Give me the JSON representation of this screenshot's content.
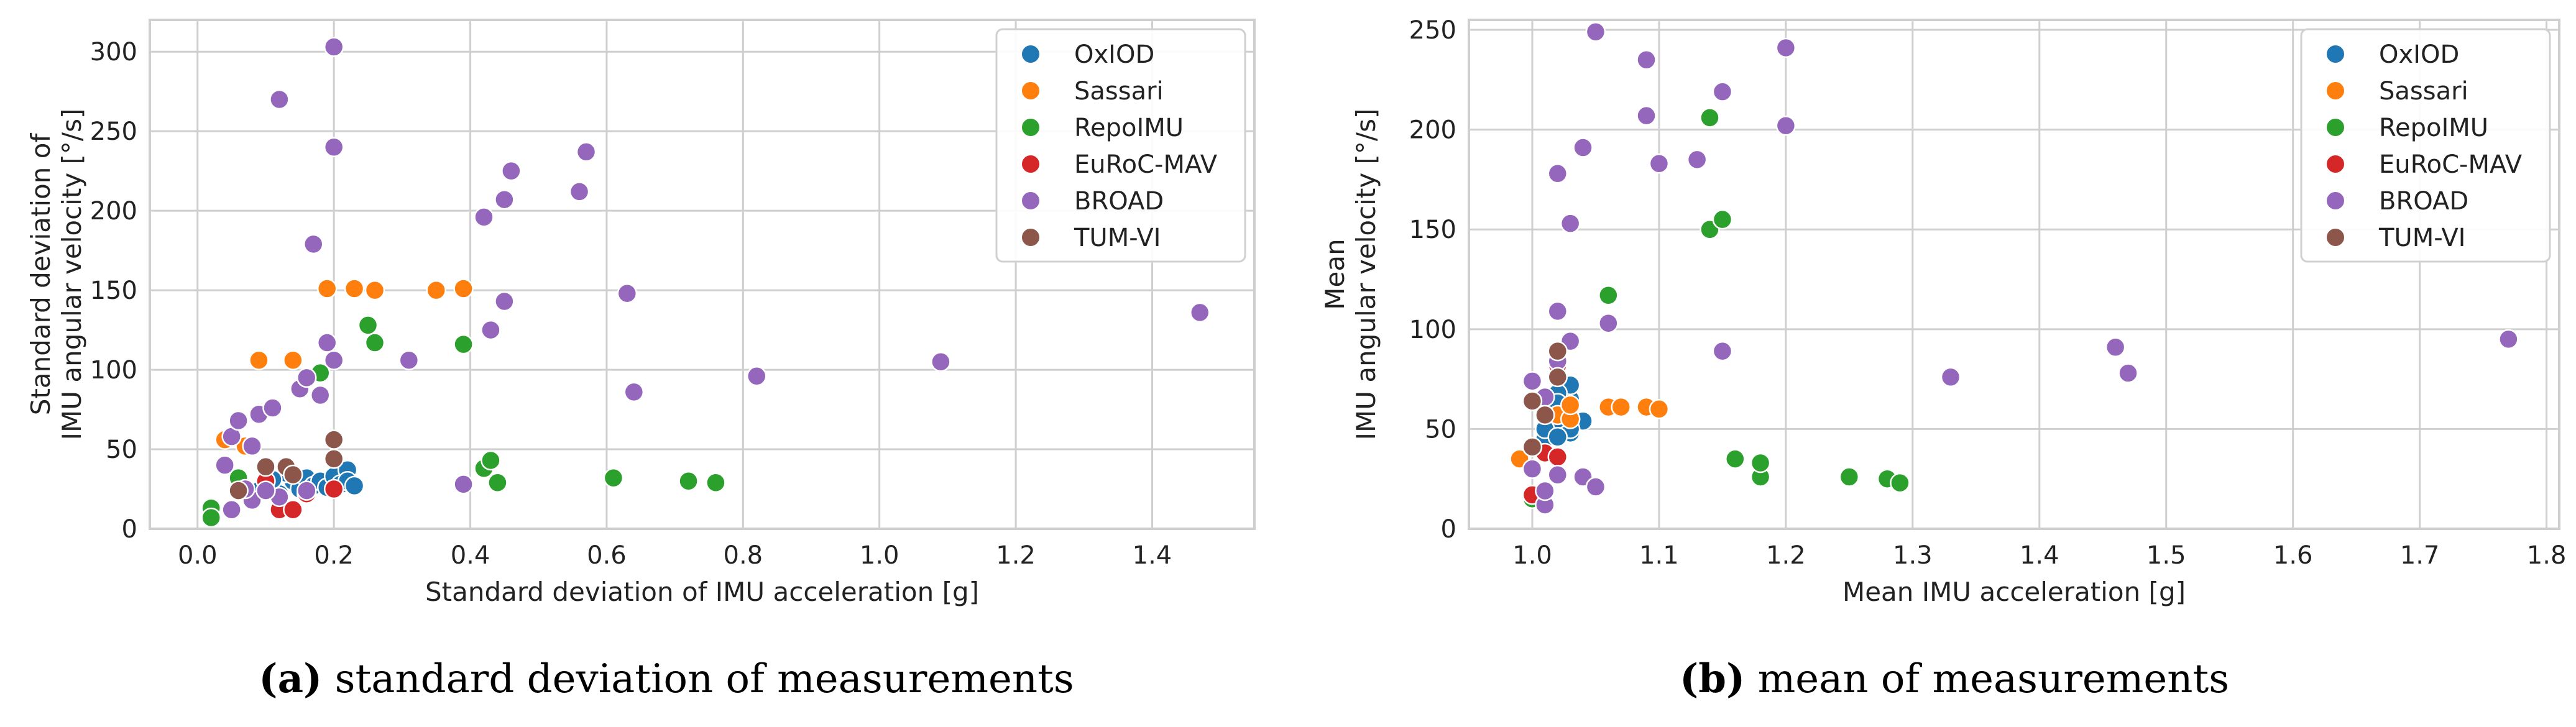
{
  "chart_data": [
    {
      "type": "scatter",
      "panel_label": "(a)",
      "caption": "standard deviation of measurements",
      "xlabel": "Standard deviation of IMU acceleration [g]",
      "ylabel_lines": [
        "Standard deviation of",
        "IMU angular velocity [°/s]"
      ],
      "xlim": [
        -0.07,
        1.55
      ],
      "ylim": [
        0,
        320
      ],
      "xticks": [
        0.0,
        0.2,
        0.4,
        0.6,
        0.8,
        1.0,
        1.2,
        1.4
      ],
      "xtick_labels": [
        "0.0",
        "0.2",
        "0.4",
        "0.6",
        "0.8",
        "1.0",
        "1.2",
        "1.4"
      ],
      "yticks": [
        0,
        50,
        100,
        150,
        200,
        250,
        300
      ],
      "ytick_labels": [
        "0",
        "50",
        "100",
        "150",
        "200",
        "250",
        "300"
      ],
      "grid": true,
      "legend": "top-right",
      "series": [
        {
          "name": "OxIOD",
          "color": "#1f77b4",
          "points": [
            [
              0.1,
              28
            ],
            [
              0.12,
              22
            ],
            [
              0.14,
              30
            ],
            [
              0.15,
              25
            ],
            [
              0.16,
              32
            ],
            [
              0.17,
              27
            ],
            [
              0.18,
              30
            ],
            [
              0.19,
              26
            ],
            [
              0.2,
              33
            ],
            [
              0.21,
              28
            ],
            [
              0.22,
              37
            ],
            [
              0.22,
              30
            ],
            [
              0.23,
              27
            ],
            [
              0.13,
              35
            ],
            [
              0.09,
              24
            ],
            [
              0.11,
              31
            ]
          ]
        },
        {
          "name": "Sassari",
          "color": "#ff7f0e",
          "points": [
            [
              0.04,
              56
            ],
            [
              0.07,
              52
            ],
            [
              0.09,
              106
            ],
            [
              0.14,
              106
            ],
            [
              0.19,
              151
            ],
            [
              0.23,
              151
            ],
            [
              0.26,
              150
            ],
            [
              0.35,
              150
            ],
            [
              0.39,
              151
            ]
          ]
        },
        {
          "name": "RepoIMU",
          "color": "#2ca02c",
          "points": [
            [
              0.02,
              13
            ],
            [
              0.02,
              7
            ],
            [
              0.06,
              32
            ],
            [
              0.18,
              98
            ],
            [
              0.25,
              128
            ],
            [
              0.26,
              117
            ],
            [
              0.39,
              116
            ],
            [
              0.42,
              38
            ],
            [
              0.43,
              43
            ],
            [
              0.44,
              29
            ],
            [
              0.61,
              32
            ],
            [
              0.72,
              30
            ],
            [
              0.76,
              29
            ]
          ]
        },
        {
          "name": "EuRoC-MAV",
          "color": "#d62728",
          "points": [
            [
              0.12,
              12
            ],
            [
              0.14,
              12
            ],
            [
              0.16,
              22
            ],
            [
              0.2,
              25
            ],
            [
              0.1,
              30
            ]
          ]
        },
        {
          "name": "BROAD",
          "color": "#9467bd",
          "points": [
            [
              0.05,
              12
            ],
            [
              0.05,
              58
            ],
            [
              0.08,
              52
            ],
            [
              0.06,
              68
            ],
            [
              0.09,
              72
            ],
            [
              0.11,
              76
            ],
            [
              0.08,
              18
            ],
            [
              0.12,
              20
            ],
            [
              0.15,
              88
            ],
            [
              0.16,
              95
            ],
            [
              0.18,
              84
            ],
            [
              0.19,
              117
            ],
            [
              0.2,
              106
            ],
            [
              0.17,
              179
            ],
            [
              0.2,
              240
            ],
            [
              0.12,
              270
            ],
            [
              0.2,
              303
            ],
            [
              0.31,
              106
            ],
            [
              0.39,
              28
            ],
            [
              0.42,
              196
            ],
            [
              0.43,
              125
            ],
            [
              0.45,
              143
            ],
            [
              0.45,
              207
            ],
            [
              0.46,
              225
            ],
            [
              0.56,
              212
            ],
            [
              0.57,
              237
            ],
            [
              0.63,
              148
            ],
            [
              0.64,
              86
            ],
            [
              0.82,
              96
            ],
            [
              1.09,
              105
            ],
            [
              1.47,
              136
            ],
            [
              0.04,
              40
            ],
            [
              0.07,
              25
            ],
            [
              0.1,
              24
            ],
            [
              0.16,
              24
            ]
          ]
        },
        {
          "name": "TUM-VI",
          "color": "#8c564b",
          "points": [
            [
              0.06,
              24
            ],
            [
              0.1,
              39
            ],
            [
              0.13,
              39
            ],
            [
              0.14,
              34
            ],
            [
              0.2,
              56
            ],
            [
              0.2,
              44
            ]
          ]
        }
      ]
    },
    {
      "type": "scatter",
      "panel_label": "(b)",
      "caption": "mean of measurements",
      "xlabel": "Mean IMU acceleration [g]",
      "ylabel_lines": [
        "Mean",
        "IMU angular velocity [°/s]"
      ],
      "xlim": [
        0.95,
        1.81
      ],
      "ylim": [
        0,
        255
      ],
      "xticks": [
        1.0,
        1.1,
        1.2,
        1.3,
        1.4,
        1.5,
        1.6,
        1.7,
        1.8
      ],
      "xtick_labels": [
        "1.0",
        "1.1",
        "1.2",
        "1.3",
        "1.4",
        "1.5",
        "1.6",
        "1.7",
        "1.8"
      ],
      "yticks": [
        0,
        50,
        100,
        150,
        200,
        250
      ],
      "ytick_labels": [
        "0",
        "50",
        "100",
        "150",
        "200",
        "250"
      ],
      "grid": true,
      "legend": "top-right",
      "series": [
        {
          "name": "OxIOD",
          "color": "#1f77b4",
          "points": [
            [
              1.01,
              45
            ],
            [
              1.02,
              52
            ],
            [
              1.02,
              60
            ],
            [
              1.03,
              55
            ],
            [
              1.03,
              65
            ],
            [
              1.03,
              72
            ],
            [
              1.04,
              54
            ],
            [
              1.03,
              48
            ],
            [
              1.02,
              68
            ],
            [
              1.01,
              58
            ],
            [
              1.02,
              63
            ],
            [
              1.03,
              50
            ],
            [
              1.02,
              55
            ],
            [
              1.01,
              50
            ],
            [
              1.02,
              46
            ]
          ]
        },
        {
          "name": "Sassari",
          "color": "#ff7f0e",
          "points": [
            [
              0.99,
              35
            ],
            [
              1.02,
              57
            ],
            [
              1.03,
              55
            ],
            [
              1.03,
              62
            ],
            [
              1.06,
              61
            ],
            [
              1.07,
              61
            ],
            [
              1.09,
              61
            ],
            [
              1.1,
              60
            ]
          ]
        },
        {
          "name": "RepoIMU",
          "color": "#2ca02c",
          "points": [
            [
              1.0,
              15
            ],
            [
              1.06,
              117
            ],
            [
              1.14,
              150
            ],
            [
              1.14,
              206
            ],
            [
              1.15,
              155
            ],
            [
              1.16,
              35
            ],
            [
              1.18,
              26
            ],
            [
              1.18,
              33
            ],
            [
              1.25,
              26
            ],
            [
              1.28,
              25
            ],
            [
              1.29,
              23
            ]
          ]
        },
        {
          "name": "EuRoC-MAV",
          "color": "#d62728",
          "points": [
            [
              1.0,
              17
            ],
            [
              1.01,
              38
            ],
            [
              1.02,
              36
            ],
            [
              1.02,
              82
            ]
          ]
        },
        {
          "name": "BROAD",
          "color": "#9467bd",
          "points": [
            [
              1.0,
              30
            ],
            [
              1.01,
              12
            ],
            [
              1.01,
              19
            ],
            [
              1.02,
              27
            ],
            [
              1.02,
              109
            ],
            [
              1.02,
              178
            ],
            [
              1.03,
              94
            ],
            [
              1.03,
              153
            ],
            [
              1.04,
              191
            ],
            [
              1.04,
              26
            ],
            [
              1.05,
              21
            ],
            [
              1.05,
              249
            ],
            [
              1.06,
              103
            ],
            [
              1.09,
              235
            ],
            [
              1.09,
              207
            ],
            [
              1.1,
              183
            ],
            [
              1.13,
              185
            ],
            [
              1.15,
              219
            ],
            [
              1.15,
              89
            ],
            [
              1.2,
              241
            ],
            [
              1.2,
              202
            ],
            [
              1.33,
              76
            ],
            [
              1.46,
              91
            ],
            [
              1.47,
              78
            ],
            [
              1.77,
              95
            ],
            [
              1.0,
              74
            ],
            [
              1.01,
              66
            ],
            [
              1.02,
              84
            ]
          ]
        },
        {
          "name": "TUM-VI",
          "color": "#8c564b",
          "points": [
            [
              1.0,
              41
            ],
            [
              1.0,
              64
            ],
            [
              1.01,
              57
            ],
            [
              1.02,
              76
            ],
            [
              1.02,
              89
            ]
          ]
        }
      ]
    }
  ]
}
